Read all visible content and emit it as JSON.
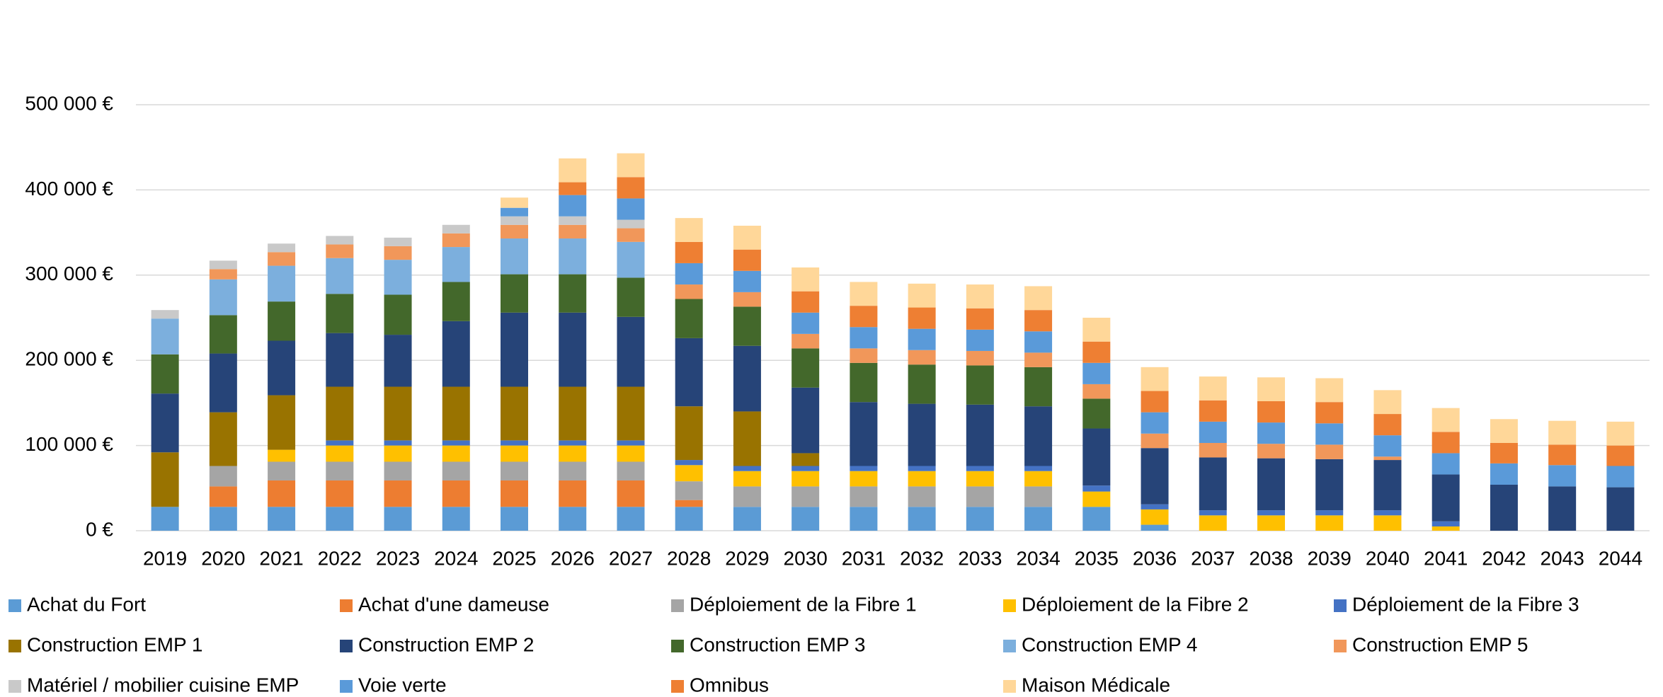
{
  "chart_data": {
    "type": "stacked_bar",
    "categories": [
      "2019",
      "2020",
      "2021",
      "2022",
      "2023",
      "2024",
      "2025",
      "2026",
      "2027",
      "2028",
      "2029",
      "2030",
      "2031",
      "2032",
      "2033",
      "2034",
      "2035",
      "2036",
      "2037",
      "2038",
      "2039",
      "2040",
      "2041",
      "2042",
      "2043",
      "2044"
    ],
    "ylim": [
      0,
      500000
    ],
    "yticks": [
      {
        "value": 0,
        "label": "0 €"
      },
      {
        "value": 100000,
        "label": "100 000 €"
      },
      {
        "value": 200000,
        "label": "200 000 €"
      },
      {
        "value": 300000,
        "label": "300 000 €"
      },
      {
        "value": 400000,
        "label": "400 000 €"
      },
      {
        "value": 500000,
        "label": "500 000 €"
      }
    ],
    "grid": true,
    "legend": "bottom",
    "series": [
      {
        "name": "Achat du Fort",
        "color": "#5b9bd5",
        "values": [
          28000,
          28000,
          28000,
          28000,
          28000,
          28000,
          28000,
          28000,
          28000,
          28000,
          28000,
          28000,
          28000,
          28000,
          28000,
          28000,
          28000,
          7000,
          0,
          0,
          0,
          0,
          0,
          0,
          0,
          0
        ]
      },
      {
        "name": "Achat d'une dameuse",
        "color": "#ed7d31",
        "values": [
          0,
          24000,
          31000,
          31000,
          31000,
          31000,
          31000,
          31000,
          31000,
          8000,
          0,
          0,
          0,
          0,
          0,
          0,
          0,
          0,
          0,
          0,
          0,
          0,
          0,
          0,
          0,
          0
        ]
      },
      {
        "name": "Déploiement de la Fibre 1",
        "color": "#a5a5a5",
        "values": [
          0,
          24000,
          22000,
          22000,
          22000,
          22000,
          22000,
          22000,
          22000,
          22000,
          24000,
          24000,
          24000,
          24000,
          24000,
          24000,
          0,
          0,
          0,
          0,
          0,
          0,
          0,
          0,
          0,
          0
        ]
      },
      {
        "name": "Déploiement de la Fibre 2",
        "color": "#ffc000",
        "values": [
          0,
          0,
          14000,
          19000,
          19000,
          19000,
          19000,
          19000,
          19000,
          19000,
          18000,
          18000,
          18000,
          18000,
          18000,
          18000,
          18000,
          18000,
          18000,
          18000,
          18000,
          18000,
          5000,
          0,
          0,
          0
        ]
      },
      {
        "name": "Déploiement de la Fibre 3",
        "color": "#4472c4",
        "values": [
          0,
          0,
          0,
          6000,
          6000,
          6000,
          6000,
          6000,
          6000,
          6000,
          6000,
          6000,
          6000,
          6000,
          6000,
          6000,
          7000,
          6000,
          6000,
          6000,
          6000,
          6000,
          6000,
          0,
          0,
          0
        ]
      },
      {
        "name": "Construction EMP 1",
        "color": "#997300",
        "values": [
          64000,
          63000,
          64000,
          63000,
          63000,
          63000,
          63000,
          63000,
          63000,
          63000,
          64000,
          15000,
          0,
          0,
          0,
          0,
          0,
          0,
          0,
          0,
          0,
          0,
          0,
          0,
          0,
          0
        ]
      },
      {
        "name": "Construction EMP 2",
        "color": "#264478",
        "values": [
          69000,
          69000,
          64000,
          63000,
          61000,
          77000,
          87000,
          87000,
          82000,
          80000,
          77000,
          77000,
          75000,
          73000,
          72000,
          70000,
          67000,
          66000,
          62000,
          61000,
          60000,
          59000,
          55000,
          54000,
          52000,
          51000
        ]
      },
      {
        "name": "Construction EMP 3",
        "color": "#43682b",
        "values": [
          46000,
          45000,
          46000,
          46000,
          47000,
          46000,
          45000,
          45000,
          46000,
          46000,
          46000,
          46000,
          46000,
          46000,
          46000,
          46000,
          35000,
          0,
          0,
          0,
          0,
          0,
          0,
          0,
          0,
          0
        ]
      },
      {
        "name": "Construction EMP 4",
        "color": "#7cafdd",
        "values": [
          42000,
          42000,
          42000,
          42000,
          41000,
          41000,
          42000,
          42000,
          42000,
          0,
          0,
          0,
          0,
          0,
          0,
          0,
          0,
          0,
          0,
          0,
          0,
          0,
          0,
          0,
          0,
          0
        ]
      },
      {
        "name": "Construction EMP 5",
        "color": "#f1975a",
        "values": [
          0,
          12000,
          16000,
          16000,
          16000,
          16000,
          16000,
          16000,
          16000,
          17000,
          17000,
          17000,
          17000,
          17000,
          17000,
          17000,
          17000,
          17000,
          17000,
          17000,
          17000,
          4000,
          0,
          0,
          0,
          0
        ]
      },
      {
        "name": "Matériel / mobilier cuisine EMP",
        "color": "#c9c9c9",
        "values": [
          10000,
          10000,
          10000,
          10000,
          10000,
          10000,
          10000,
          10000,
          10000,
          0,
          0,
          0,
          0,
          0,
          0,
          0,
          0,
          0,
          0,
          0,
          0,
          0,
          0,
          0,
          0,
          0
        ]
      },
      {
        "name": "Voie verte",
        "color": "#5a9ad9",
        "values": [
          0,
          0,
          0,
          0,
          0,
          0,
          10000,
          25000,
          25000,
          25000,
          25000,
          25000,
          25000,
          25000,
          25000,
          25000,
          25000,
          25000,
          25000,
          25000,
          25000,
          25000,
          25000,
          25000,
          25000,
          25000
        ]
      },
      {
        "name": "Omnibus",
        "color": "#ee7f33",
        "values": [
          0,
          0,
          0,
          0,
          0,
          0,
          0,
          15000,
          25000,
          25000,
          25000,
          25000,
          25000,
          25000,
          25000,
          25000,
          25000,
          25000,
          25000,
          25000,
          25000,
          25000,
          25000,
          24000,
          24000,
          24000
        ]
      },
      {
        "name": "Maison Médicale",
        "color": "#ffd799",
        "values": [
          0,
          0,
          0,
          0,
          0,
          0,
          12000,
          28000,
          28000,
          28000,
          28000,
          28000,
          28000,
          28000,
          28000,
          28000,
          28000,
          28000,
          28000,
          28000,
          28000,
          28000,
          28000,
          28000,
          28000,
          28000
        ]
      }
    ]
  }
}
